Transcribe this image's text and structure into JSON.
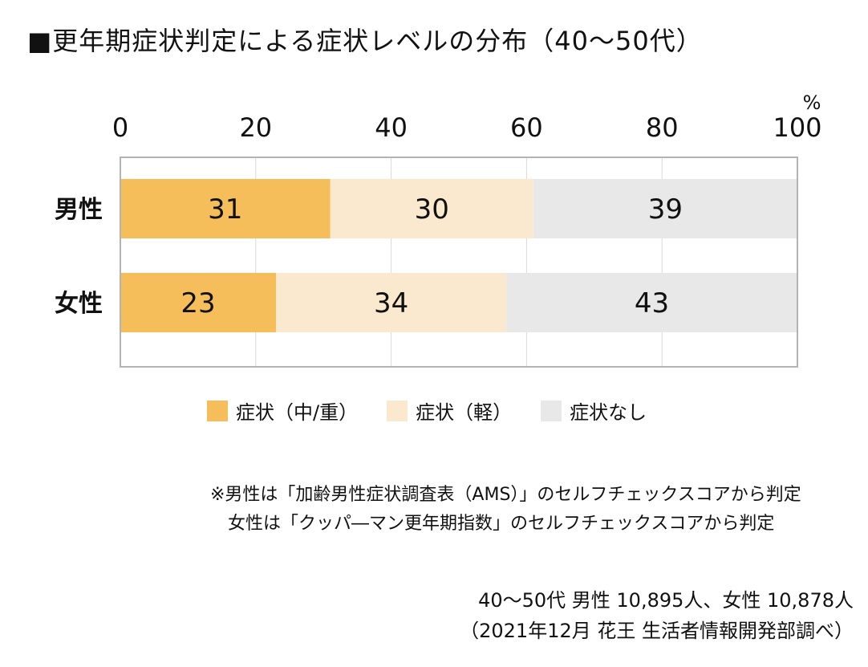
{
  "title": "■更年期症状判定による症状レベルの分布（40～50代）",
  "chart_data": {
    "type": "bar",
    "orientation": "horizontal",
    "stacked": true,
    "categories": [
      "男性",
      "女性"
    ],
    "series": [
      {
        "name": "症状（中/重）",
        "values": [
          31,
          23
        ],
        "color": "#f5be5b"
      },
      {
        "name": "症状（軽）",
        "values": [
          30,
          34
        ],
        "color": "#fbe9cf"
      },
      {
        "name": "症状なし",
        "values": [
          39,
          43
        ],
        "color": "#e8e8e8"
      }
    ],
    "xlim": [
      0,
      100
    ],
    "ticks": [
      "0",
      "20",
      "40",
      "60",
      "80",
      "100"
    ],
    "unit_label": "%",
    "grid": true,
    "legend_position": "bottom"
  },
  "notes": {
    "line1": "※男性は「加齢男性症状調査表（AMS）」のセルフチェックスコアから判定",
    "line2": "女性は「クッパ―マン更年期指数」のセルフチェックスコアから判定"
  },
  "source": {
    "line1": "40～50代 男性 10,895人、女性 10,878人",
    "line2": "（2021年12月 花王 生活者情報開発部調べ）"
  }
}
